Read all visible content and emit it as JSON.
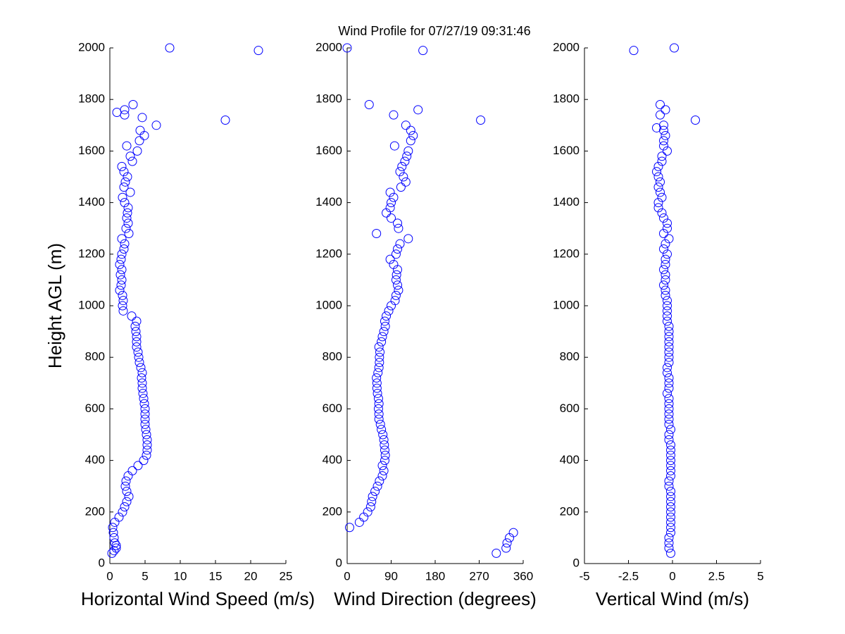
{
  "title": "Wind Profile for  07/27/19 09:31:46",
  "chart_data": [
    {
      "type": "scatter",
      "xlabel": "Horizontal Wind Speed (m/s)",
      "ylabel": "Height AGL (m)",
      "color": "#0000ff",
      "xlim": [
        0,
        25
      ],
      "xticks": [
        0,
        5,
        10,
        15,
        20,
        25
      ],
      "ylim": [
        0,
        2000
      ],
      "yticks": [
        0,
        200,
        400,
        600,
        800,
        1000,
        1200,
        1400,
        1600,
        1800,
        2000
      ],
      "x": [
        0.3,
        0.6,
        0.9,
        0.9,
        0.7,
        0.6,
        0.5,
        0.4,
        0.7,
        1.3,
        1.8,
        2.1,
        2.4,
        2.7,
        2.4,
        2.2,
        2.3,
        2.6,
        3.2,
        4.0,
        4.8,
        5.2,
        5.3,
        5.3,
        5.3,
        5.2,
        5.1,
        5.0,
        5.0,
        5.0,
        5.0,
        4.9,
        4.8,
        4.7,
        4.6,
        4.6,
        4.5,
        4.6,
        4.4,
        4.2,
        4.1,
        4.0,
        3.8,
        3.8,
        3.8,
        3.7,
        3.6,
        3.8,
        3.1,
        1.9,
        1.8,
        1.9,
        1.8,
        1.4,
        1.6,
        1.7,
        1.5,
        1.7,
        1.4,
        1.6,
        1.7,
        2.0,
        2.1,
        1.7,
        2.7,
        2.3,
        2.6,
        2.4,
        2.5,
        2.6,
        2.1,
        1.8,
        2.9,
        2.0,
        2.2,
        2.5,
        2.0,
        1.7,
        3.2,
        2.9,
        3.9,
        2.4,
        4.2,
        4.9,
        4.3,
        6.6,
        16.4,
        4.6,
        2.1,
        1.0,
        2.1,
        3.3,
        21.1,
        8.5
      ],
      "y": [
        40,
        50,
        60,
        70,
        80,
        100,
        120,
        140,
        160,
        180,
        200,
        220,
        240,
        260,
        280,
        300,
        320,
        340,
        360,
        380,
        400,
        420,
        440,
        460,
        480,
        500,
        520,
        540,
        560,
        580,
        600,
        620,
        640,
        660,
        680,
        700,
        720,
        740,
        760,
        780,
        800,
        820,
        840,
        860,
        880,
        900,
        920,
        940,
        960,
        980,
        1000,
        1020,
        1040,
        1060,
        1080,
        1100,
        1120,
        1140,
        1160,
        1180,
        1200,
        1220,
        1240,
        1260,
        1280,
        1300,
        1320,
        1340,
        1360,
        1380,
        1400,
        1420,
        1440,
        1460,
        1480,
        1500,
        1520,
        1540,
        1560,
        1580,
        1600,
        1620,
        1640,
        1660,
        1680,
        1700,
        1720,
        1730,
        1740,
        1750,
        1760,
        1780,
        1990,
        2000
      ]
    },
    {
      "type": "scatter",
      "xlabel": "Wind Direction (degrees)",
      "color": "#0000ff",
      "xlim": [
        0,
        360
      ],
      "xticks": [
        0,
        90,
        180,
        270,
        360
      ],
      "ylim": [
        0,
        2000
      ],
      "yticks": [
        0,
        200,
        400,
        600,
        800,
        1000,
        1200,
        1400,
        1600,
        1800,
        2000
      ],
      "x": [
        305,
        325,
        327,
        332,
        340,
        5,
        25,
        34,
        42,
        48,
        50,
        52,
        57,
        62,
        66,
        72,
        75,
        72,
        77,
        78,
        77,
        76,
        75,
        73,
        70,
        68,
        65,
        65,
        64,
        65,
        64,
        62,
        61,
        61,
        60,
        63,
        65,
        66,
        66,
        67,
        65,
        70,
        72,
        75,
        78,
        77,
        80,
        85,
        90,
        98,
        100,
        105,
        103,
        100,
        101,
        103,
        95,
        88,
        100,
        103,
        108,
        125,
        60,
        105,
        103,
        90,
        80,
        88,
        90,
        95,
        88,
        110,
        120,
        115,
        108,
        112,
        118,
        122,
        125,
        97,
        130,
        135,
        130,
        120,
        273,
        95,
        145,
        45,
        155,
        0
      ],
      "y": [
        40,
        60,
        80,
        100,
        120,
        140,
        160,
        180,
        200,
        220,
        240,
        260,
        280,
        300,
        320,
        340,
        360,
        380,
        400,
        420,
        440,
        460,
        480,
        500,
        520,
        540,
        560,
        580,
        600,
        620,
        640,
        660,
        680,
        700,
        720,
        740,
        760,
        780,
        800,
        820,
        840,
        860,
        880,
        900,
        920,
        940,
        960,
        980,
        1000,
        1020,
        1040,
        1060,
        1080,
        1100,
        1120,
        1140,
        1160,
        1180,
        1200,
        1220,
        1240,
        1260,
        1280,
        1300,
        1320,
        1340,
        1360,
        1380,
        1400,
        1420,
        1440,
        1460,
        1480,
        1500,
        1520,
        1540,
        1560,
        1580,
        1600,
        1620,
        1640,
        1660,
        1680,
        1700,
        1720,
        1740,
        1760,
        1780,
        1990,
        2000
      ]
    },
    {
      "type": "scatter",
      "xlabel": "Vertical Wind (m/s)",
      "color": "#0000ff",
      "xlim": [
        -5,
        5
      ],
      "xticks": [
        -5,
        -2.5,
        0,
        2.5,
        5
      ],
      "ylim": [
        0,
        2000
      ],
      "yticks": [
        0,
        200,
        400,
        600,
        800,
        1000,
        1200,
        1400,
        1600,
        1800,
        2000
      ],
      "x": [
        -0.1,
        -0.2,
        -0.2,
        -0.2,
        -0.1,
        -0.1,
        -0.1,
        -0.1,
        -0.1,
        -0.1,
        -0.1,
        -0.1,
        -0.1,
        -0.2,
        -0.2,
        -0.1,
        -0.1,
        -0.1,
        -0.1,
        -0.1,
        -0.1,
        -0.1,
        -0.2,
        -0.2,
        -0.1,
        -0.2,
        -0.2,
        -0.2,
        -0.2,
        -0.2,
        -0.2,
        -0.3,
        -0.2,
        -0.2,
        -0.2,
        -0.3,
        -0.3,
        -0.2,
        -0.2,
        -0.2,
        -0.2,
        -0.2,
        -0.2,
        -0.2,
        -0.2,
        -0.3,
        -0.3,
        -0.3,
        -0.3,
        -0.3,
        -0.4,
        -0.4,
        -0.5,
        -0.4,
        -0.4,
        -0.5,
        -0.4,
        -0.4,
        -0.3,
        -0.5,
        -0.4,
        -0.2,
        -0.5,
        -0.3,
        -0.3,
        -0.5,
        -0.6,
        -0.8,
        -0.8,
        -0.6,
        -0.7,
        -0.8,
        -0.7,
        -0.8,
        -0.9,
        -0.8,
        -0.6,
        -0.6,
        -0.3,
        -0.5,
        -0.5,
        -0.4,
        -0.5,
        -0.9,
        -0.5,
        1.3,
        -0.7,
        -0.4,
        -0.7,
        -2.2,
        0.1
      ],
      "y": [
        40,
        60,
        80,
        100,
        120,
        140,
        160,
        180,
        200,
        220,
        240,
        260,
        280,
        300,
        320,
        340,
        360,
        380,
        400,
        420,
        440,
        460,
        480,
        500,
        520,
        540,
        560,
        580,
        600,
        620,
        640,
        660,
        680,
        700,
        720,
        740,
        760,
        780,
        800,
        820,
        840,
        860,
        880,
        900,
        920,
        940,
        960,
        980,
        1000,
        1020,
        1040,
        1060,
        1080,
        1100,
        1120,
        1140,
        1160,
        1180,
        1200,
        1220,
        1240,
        1260,
        1280,
        1300,
        1320,
        1340,
        1360,
        1380,
        1400,
        1420,
        1440,
        1460,
        1480,
        1500,
        1520,
        1540,
        1560,
        1580,
        1600,
        1620,
        1640,
        1660,
        1680,
        1690,
        1700,
        1720,
        1740,
        1760,
        1780,
        1990,
        2000
      ]
    }
  ]
}
